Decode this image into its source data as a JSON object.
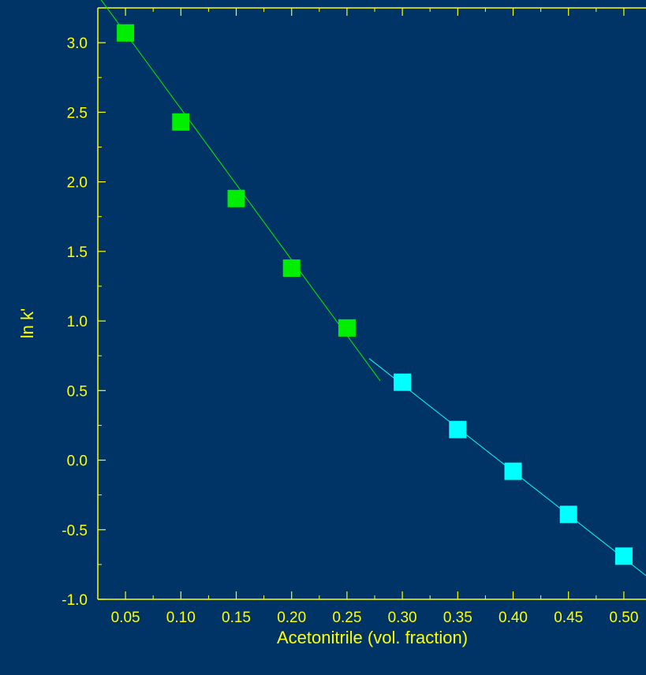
{
  "chart_data": {
    "type": "scatter",
    "xlabel": "Acetonitrile (vol. fraction)",
    "ylabel": "ln k'",
    "xlim": [
      0.025,
      0.52
    ],
    "ylim": [
      -1.0,
      3.25
    ],
    "xticks": [
      "0.05",
      "0.10",
      "0.15",
      "0.20",
      "0.25",
      "0.30",
      "0.35",
      "0.40",
      "0.45",
      "0.50"
    ],
    "yticks": [
      "-1.0",
      "-0.5",
      "0.0",
      "0.5",
      "1.0",
      "1.5",
      "2.0",
      "2.5",
      "3.0"
    ],
    "grid": false,
    "series": [
      {
        "color": "#00ee00",
        "x": [
          0.05,
          0.1,
          0.15,
          0.2,
          0.25
        ],
        "y": [
          3.07,
          2.43,
          1.88,
          1.38,
          0.95
        ],
        "fit_line": {
          "x": [
            0.025,
            0.28
          ],
          "y": [
            3.34,
            0.57
          ]
        }
      },
      {
        "color": "#00ffff",
        "x": [
          0.3,
          0.35,
          0.4,
          0.45,
          0.5
        ],
        "y": [
          0.56,
          0.22,
          -0.08,
          -0.39,
          -0.69
        ],
        "fit_line": {
          "x": [
            0.27,
            0.52
          ],
          "y": [
            0.73,
            -0.83
          ]
        }
      }
    ],
    "colors": {
      "background": "#003366",
      "axis": "#ffff00",
      "text": "#ffff00"
    }
  }
}
